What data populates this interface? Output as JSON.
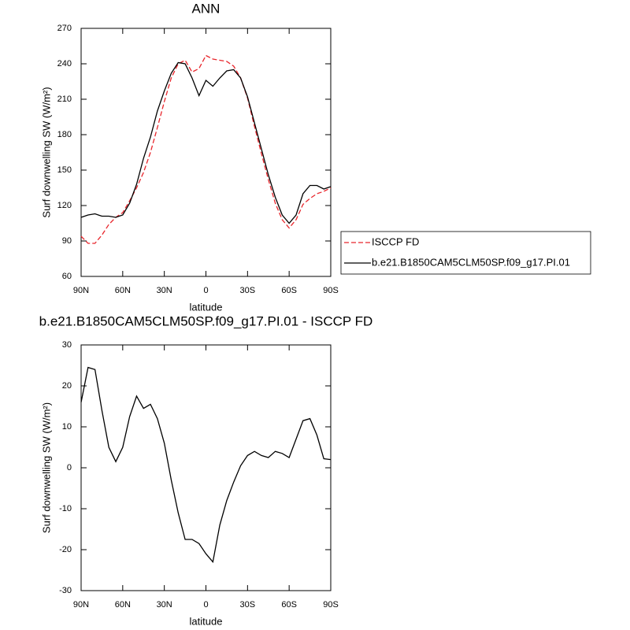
{
  "chart_data": [
    {
      "type": "line",
      "title": "ANN",
      "xlabel": "latitude",
      "ylabel": "Surf downwelling SW (W/m²)",
      "x": [
        90,
        85,
        80,
        75,
        70,
        65,
        60,
        55,
        50,
        45,
        40,
        35,
        30,
        25,
        20,
        15,
        10,
        5,
        0,
        -5,
        -10,
        -15,
        -20,
        -25,
        -30,
        -35,
        -40,
        -45,
        -50,
        -55,
        -60,
        -65,
        -70,
        -75,
        -80,
        -85,
        -90
      ],
      "xlim": [
        90,
        -90
      ],
      "xticks": [
        {
          "value": 90,
          "label": "90N"
        },
        {
          "value": 60,
          "label": "60N"
        },
        {
          "value": 30,
          "label": "30N"
        },
        0,
        {
          "value": -30,
          "label": "30S"
        },
        {
          "value": -60,
          "label": "60S"
        },
        {
          "value": -90,
          "label": "90S"
        }
      ],
      "ylim": [
        60,
        270
      ],
      "yticks": [
        60,
        90,
        120,
        150,
        180,
        210,
        240,
        270
      ],
      "legend": "outside right",
      "series": [
        {
          "name": "ISCCP FD",
          "color": "#e8262c",
          "linestyle": "dashed",
          "values": [
            94,
            88,
            88,
            95,
            104,
            110,
            114,
            124,
            135,
            148,
            165,
            186,
            208,
            228,
            240,
            243,
            233,
            236,
            247,
            244,
            243,
            242,
            238,
            228,
            211,
            187,
            164,
            142,
            122,
            108,
            101,
            108,
            121,
            126,
            130,
            132,
            135
          ]
        },
        {
          "name": "b.e21.B1850CAM5CLM50SP.f09_g17.PI.01",
          "color": "#000000",
          "linestyle": "solid",
          "values": [
            110,
            112,
            113,
            111,
            111,
            110,
            112,
            122,
            138,
            160,
            178,
            200,
            217,
            232,
            241,
            240,
            228,
            213,
            226,
            221,
            228,
            234,
            235,
            228,
            212,
            190,
            168,
            146,
            127,
            112,
            105,
            112,
            130,
            137,
            137,
            134,
            136
          ]
        }
      ]
    },
    {
      "type": "line",
      "title": "b.e21.B1850CAM5CLM50SP.f09_g17.PI.01 - ISCCP FD",
      "xlabel": "latitude",
      "ylabel": "Surf downwelling SW (W/m²)",
      "x": [
        90,
        85,
        80,
        75,
        70,
        65,
        60,
        55,
        50,
        45,
        40,
        35,
        30,
        25,
        20,
        15,
        10,
        5,
        0,
        -5,
        -10,
        -15,
        -20,
        -25,
        -30,
        -35,
        -40,
        -45,
        -50,
        -55,
        -60,
        -65,
        -70,
        -75,
        -80,
        -85,
        -90
      ],
      "xlim": [
        90,
        -90
      ],
      "xticks": [
        {
          "value": 90,
          "label": "90N"
        },
        {
          "value": 60,
          "label": "60N"
        },
        {
          "value": 30,
          "label": "30N"
        },
        0,
        {
          "value": -30,
          "label": "30S"
        },
        {
          "value": -60,
          "label": "60S"
        },
        {
          "value": -90,
          "label": "90S"
        }
      ],
      "ylim": [
        -30,
        30
      ],
      "yticks": [
        -30,
        -20,
        -10,
        0,
        10,
        20,
        30
      ],
      "color": "#000000",
      "values": [
        16,
        24.5,
        24,
        14,
        5,
        1.5,
        5,
        12.5,
        17.5,
        14.5,
        15.5,
        12,
        6,
        -3,
        -11,
        -17.5,
        -17.5,
        -18.5,
        -21,
        -23,
        -14,
        -8,
        -3.5,
        0.5,
        3,
        4,
        3,
        2.5,
        4,
        3.5,
        2.5,
        7,
        11.5,
        12,
        8,
        2.2,
        2
      ]
    }
  ]
}
